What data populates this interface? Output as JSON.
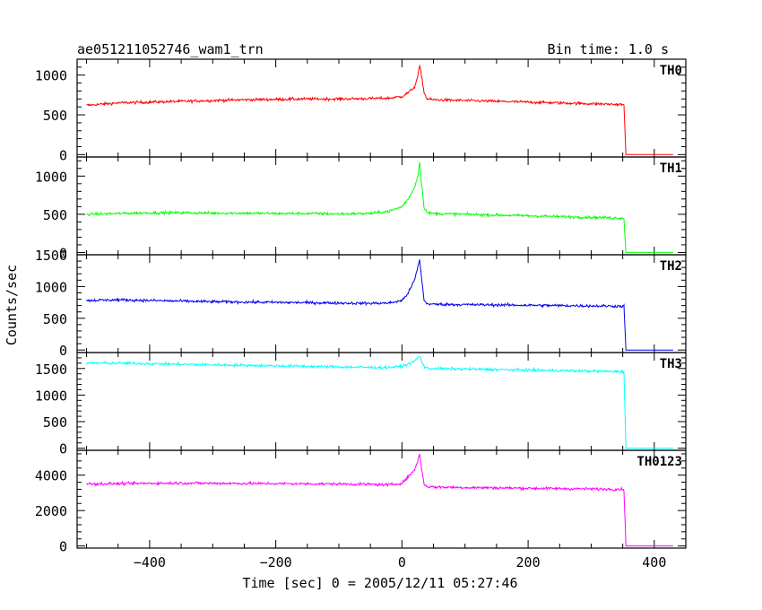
{
  "chart_data": {
    "type": "line",
    "title_left": "ae051211052746_wam1_trn",
    "title_right": "Bin time: 1.0 s",
    "xlabel": "Time [sec] 0 = 2005/12/11 05:27:46",
    "ylabel": "Counts/sec",
    "xlim": [
      -515,
      450
    ],
    "x_ticks": [
      -400,
      -200,
      0,
      200,
      400
    ],
    "grid": false,
    "bin_time_s": 1.0,
    "series": [
      {
        "name": "TH0",
        "color": "#ff0000",
        "ylim": [
          -30,
          1200
        ],
        "y_ticks": [
          0,
          500,
          1000
        ],
        "x": [
          -500,
          -450,
          -400,
          -350,
          -300,
          -250,
          -200,
          -150,
          -100,
          -50,
          -20,
          0,
          10,
          20,
          25,
          28,
          31,
          35,
          40,
          50,
          100,
          150,
          200,
          250,
          300,
          350,
          352,
          355,
          400,
          430
        ],
        "values": [
          620,
          650,
          660,
          670,
          680,
          690,
          695,
          700,
          700,
          705,
          710,
          730,
          780,
          850,
          980,
          1120,
          1000,
          780,
          700,
          690,
          680,
          670,
          660,
          650,
          640,
          630,
          620,
          0,
          0,
          0
        ]
      },
      {
        "name": "TH1",
        "color": "#00ff00",
        "ylim": [
          -30,
          1250
        ],
        "y_ticks": [
          0,
          500,
          1000
        ],
        "x": [
          -500,
          -450,
          -400,
          -350,
          -300,
          -250,
          -200,
          -150,
          -100,
          -50,
          -20,
          0,
          10,
          20,
          25,
          28,
          31,
          35,
          40,
          50,
          100,
          150,
          200,
          250,
          300,
          350,
          352,
          355,
          400,
          430
        ],
        "values": [
          500,
          510,
          520,
          520,
          515,
          515,
          510,
          510,
          505,
          510,
          540,
          600,
          700,
          850,
          1000,
          1180,
          900,
          600,
          520,
          510,
          500,
          490,
          480,
          470,
          460,
          450,
          450,
          0,
          0,
          0
        ]
      },
      {
        "name": "TH2",
        "color": "#0000ee",
        "ylim": [
          -40,
          1500
        ],
        "y_ticks": [
          0,
          500,
          1000,
          1500
        ],
        "x": [
          -500,
          -450,
          -400,
          -350,
          -300,
          -250,
          -200,
          -150,
          -100,
          -50,
          -20,
          0,
          10,
          20,
          25,
          28,
          31,
          35,
          40,
          50,
          100,
          150,
          200,
          250,
          300,
          350,
          352,
          355,
          400,
          430
        ],
        "values": [
          780,
          790,
          780,
          770,
          760,
          755,
          750,
          745,
          740,
          735,
          740,
          780,
          900,
          1100,
          1300,
          1420,
          1150,
          780,
          730,
          720,
          715,
          710,
          705,
          700,
          695,
          690,
          690,
          0,
          0,
          0
        ]
      },
      {
        "name": "TH3",
        "color": "#00ffff",
        "ylim": [
          -40,
          1800
        ],
        "y_ticks": [
          0,
          500,
          1000,
          1500
        ],
        "x": [
          -500,
          -450,
          -400,
          -350,
          -300,
          -250,
          -200,
          -150,
          -100,
          -50,
          -20,
          0,
          10,
          20,
          25,
          28,
          31,
          35,
          40,
          50,
          100,
          150,
          200,
          250,
          300,
          350,
          352,
          355,
          400,
          430
        ],
        "values": [
          1600,
          1600,
          1590,
          1580,
          1570,
          1560,
          1550,
          1540,
          1530,
          1520,
          1520,
          1540,
          1580,
          1640,
          1700,
          1730,
          1650,
          1540,
          1500,
          1500,
          1490,
          1480,
          1470,
          1460,
          1450,
          1440,
          1440,
          0,
          0,
          0
        ]
      },
      {
        "name": "TH0123",
        "color": "#ff00ff",
        "ylim": [
          -120,
          5400
        ],
        "y_ticks": [
          0,
          2000,
          4000
        ],
        "x": [
          -500,
          -450,
          -400,
          -350,
          -300,
          -250,
          -200,
          -150,
          -100,
          -50,
          -20,
          0,
          10,
          20,
          25,
          28,
          31,
          35,
          40,
          50,
          100,
          150,
          200,
          250,
          300,
          350,
          352,
          355,
          400,
          430
        ],
        "values": [
          3500,
          3520,
          3540,
          3550,
          3540,
          3530,
          3520,
          3510,
          3500,
          3480,
          3450,
          3550,
          3900,
          4300,
          4800,
          5200,
          4400,
          3500,
          3350,
          3330,
          3300,
          3280,
          3260,
          3240,
          3220,
          3200,
          3190,
          0,
          0,
          0
        ]
      }
    ]
  }
}
